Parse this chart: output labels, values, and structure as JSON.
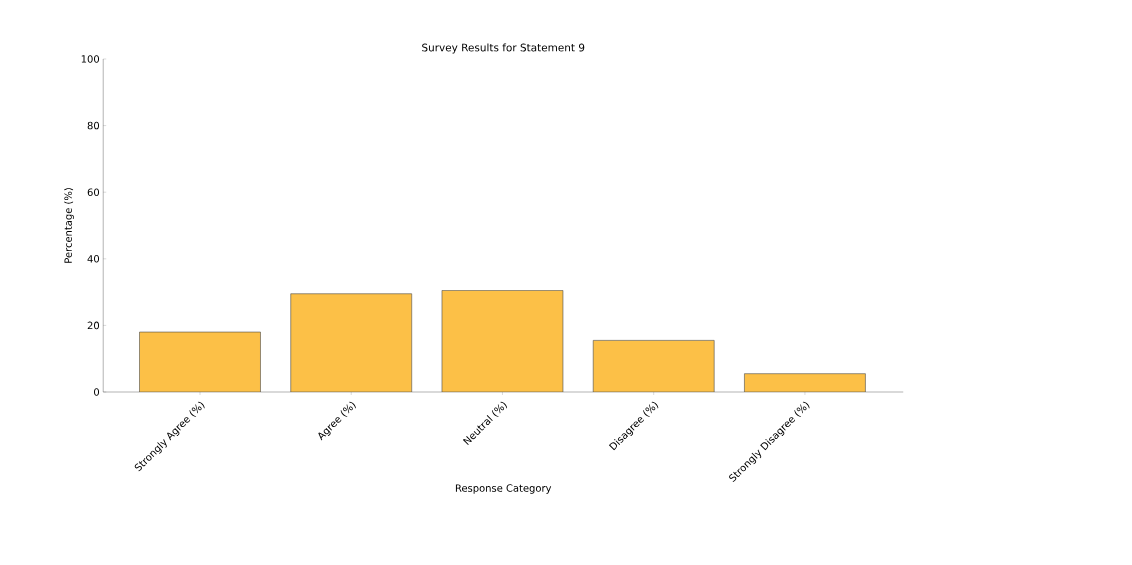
{
  "chart_data": {
    "type": "bar",
    "title": "Survey Results for Statement 9",
    "xlabel": "Response Category",
    "ylabel": "Percentage (%)",
    "categories": [
      "Strongly Agree (%)",
      "Agree (%)",
      "Neutral (%)",
      "Disagree (%)",
      "Strongly Disagree (%)"
    ],
    "values": [
      18,
      29.5,
      30.5,
      15.5,
      5.5
    ],
    "color": "#fcc047",
    "ylim": [
      0,
      100
    ],
    "yticks": [
      0,
      20,
      40,
      60,
      80,
      100
    ]
  }
}
